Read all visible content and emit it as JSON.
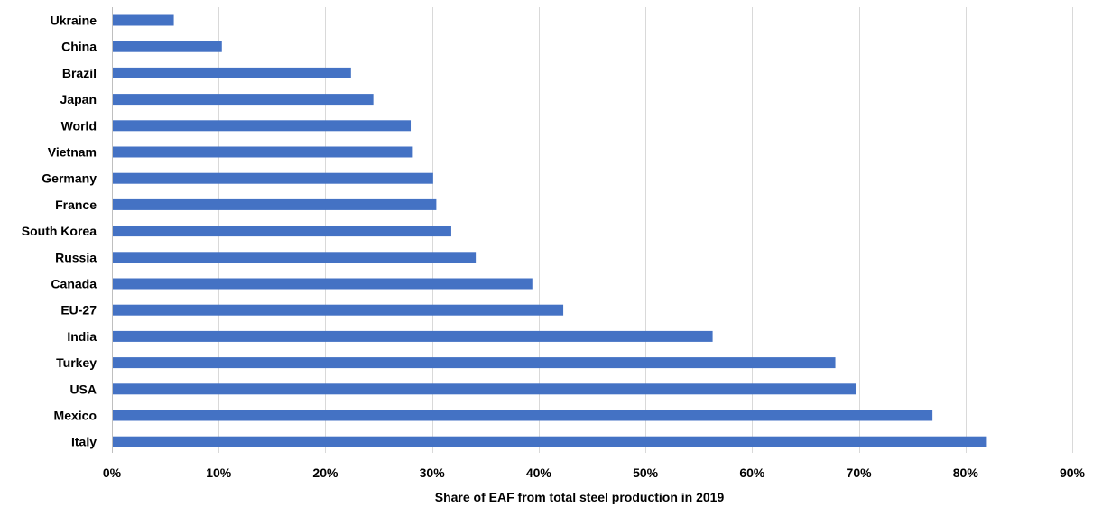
{
  "chart_data": {
    "type": "bar",
    "orientation": "horizontal",
    "categories": [
      "Ukraine",
      "China",
      "Brazil",
      "Japan",
      "World",
      "Vietnam",
      "Germany",
      "France",
      "South Korea",
      "Russia",
      "Canada",
      "EU-27",
      "India",
      "Turkey",
      "USA",
      "Mexico",
      "Italy"
    ],
    "values": [
      5.8,
      10.3,
      22.4,
      24.5,
      28.0,
      28.2,
      30.1,
      30.4,
      31.8,
      34.1,
      39.4,
      42.3,
      56.3,
      67.8,
      69.7,
      76.9,
      82.0
    ],
    "value_unit": "%",
    "xlabel": "Share of EAF from total steel production in 2019",
    "ylabel": "",
    "xlim": [
      0,
      90
    ],
    "xticks": [
      "0%",
      "10%",
      "20%",
      "30%",
      "40%",
      "50%",
      "60%",
      "70%",
      "80%",
      "90%"
    ],
    "grid": true,
    "legend": "none",
    "bar_color": "#4472c4"
  }
}
